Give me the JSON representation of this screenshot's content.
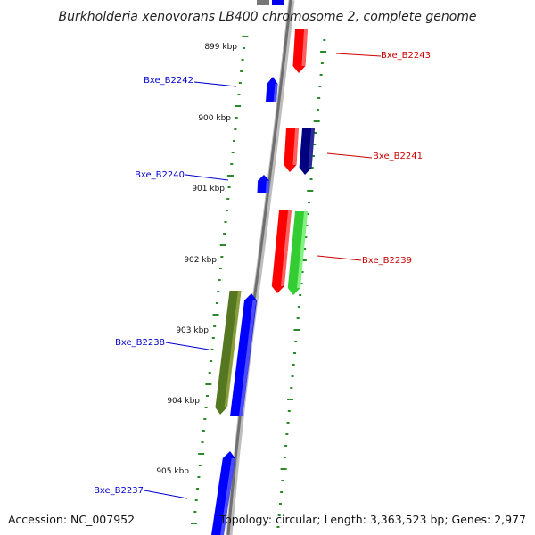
{
  "title": "Burkholderia xenovorans LB400 chromosome 2, complete genome",
  "footer": {
    "accession": "Accession: NC_007952",
    "topology": "Topology: circular; Length: 3,363,523 bp; Genes: 2,977"
  },
  "colors": {
    "forward_label": "#cc0000",
    "reverse_label": "#0000cc",
    "tick": "#2a8a2a",
    "backbone": "#8c8c8c"
  },
  "kbp_marks": [
    {
      "label": "899 kbp"
    },
    {
      "label": "900 kbp"
    },
    {
      "label": "901 kbp"
    },
    {
      "label": "902 kbp"
    },
    {
      "label": "903 kbp"
    },
    {
      "label": "904 kbp"
    },
    {
      "label": "905 kbp"
    }
  ],
  "genes": [
    {
      "label": "Bxe_B2243",
      "strand": "forward",
      "color": "#ff0000"
    },
    {
      "label": "Bxe_B2242",
      "strand": "reverse",
      "color": "#0000ff"
    },
    {
      "label": "Bxe_B2241",
      "strand": "forward",
      "color": "#ff0000"
    },
    {
      "label": "Bxe_B2240",
      "strand": "reverse",
      "color": "#0000ff"
    },
    {
      "label": "Bxe_B2239",
      "strand": "forward",
      "color": "#ff0000"
    },
    {
      "label": "Bxe_B2238",
      "strand": "reverse",
      "color": "#0000ff"
    },
    {
      "label": "Bxe_B2237",
      "strand": "reverse",
      "color": "#0000ff"
    }
  ],
  "unlabeled_features": [
    {
      "name": "dark-blue-feature",
      "color": "#000080"
    },
    {
      "name": "green-feature",
      "color": "#33cc33"
    },
    {
      "name": "olive-feature",
      "color": "#557722"
    }
  ]
}
